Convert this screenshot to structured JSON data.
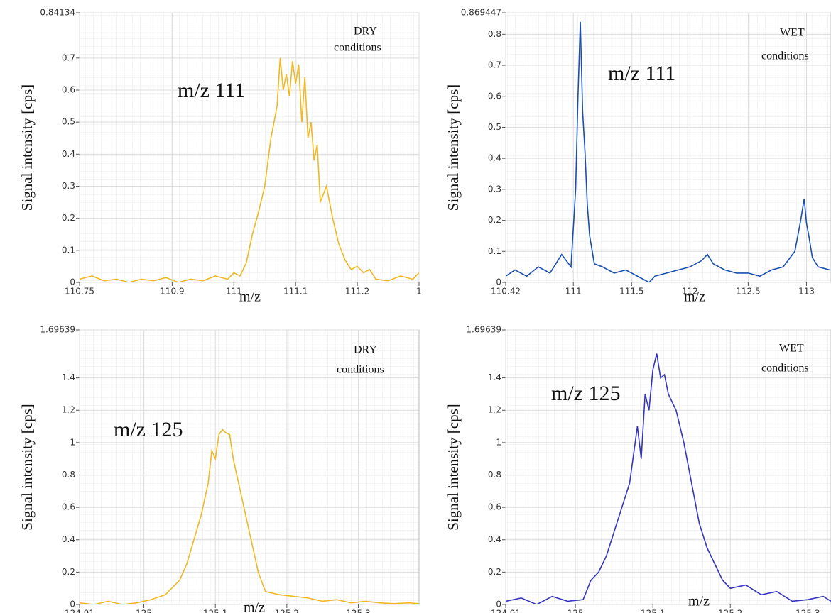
{
  "chart_data": [
    {
      "type": "line",
      "color": "#f0b823",
      "grid": true,
      "x_label": "m/z",
      "y_label": "Signal intensity [cps]",
      "annotations": [
        "DRY",
        "conditions",
        "m/z 111"
      ],
      "xlim": [
        110.75,
        111.3
      ],
      "ylim": [
        0,
        0.84134
      ],
      "xticks": [
        110.75,
        110.9,
        111,
        111.1,
        111.2,
        {
          "value": 111.3,
          "label": "1"
        }
      ],
      "yticks": [
        0,
        0.1,
        0.2,
        0.3,
        0.4,
        0.5,
        0.6,
        0.7,
        0.84134
      ],
      "x": [
        110.75,
        110.77,
        110.79,
        110.81,
        110.83,
        110.85,
        110.87,
        110.89,
        110.91,
        110.93,
        110.95,
        110.97,
        110.99,
        111.0,
        111.01,
        111.02,
        111.03,
        111.04,
        111.05,
        111.06,
        111.07,
        111.075,
        111.08,
        111.085,
        111.09,
        111.095,
        111.1,
        111.105,
        111.11,
        111.115,
        111.12,
        111.125,
        111.13,
        111.135,
        111.14,
        111.15,
        111.16,
        111.17,
        111.18,
        111.19,
        111.2,
        111.21,
        111.22,
        111.23,
        111.25,
        111.27,
        111.29,
        111.3
      ],
      "values": [
        0.01,
        0.02,
        0.005,
        0.01,
        0,
        0.01,
        0.005,
        0.015,
        0,
        0.01,
        0.005,
        0.02,
        0.01,
        0.03,
        0.02,
        0.06,
        0.15,
        0.22,
        0.3,
        0.45,
        0.55,
        0.7,
        0.6,
        0.65,
        0.58,
        0.69,
        0.62,
        0.68,
        0.5,
        0.64,
        0.45,
        0.5,
        0.38,
        0.43,
        0.25,
        0.3,
        0.2,
        0.12,
        0.07,
        0.04,
        0.05,
        0.03,
        0.04,
        0.01,
        0.005,
        0.02,
        0.01,
        0.03
      ]
    },
    {
      "type": "line",
      "color": "#1a4fb0",
      "grid": true,
      "x_label": "m/z",
      "y_label": "Signal intensity [cps]",
      "annotations": [
        "WET",
        "conditions",
        "m/z 111"
      ],
      "xlim": [
        110.42,
        113.21
      ],
      "ylim": [
        0,
        0.869447
      ],
      "xticks": [
        110.42,
        111,
        111.5,
        112,
        112.5,
        113
      ],
      "yticks": [
        0,
        0.1,
        0.2,
        0.3,
        0.4,
        0.5,
        0.6,
        0.7,
        0.8,
        0.869447
      ],
      "x": [
        110.42,
        110.5,
        110.6,
        110.7,
        110.8,
        110.9,
        110.98,
        111.02,
        111.04,
        111.06,
        111.08,
        111.1,
        111.12,
        111.14,
        111.18,
        111.25,
        111.35,
        111.45,
        111.55,
        111.65,
        111.7,
        111.8,
        111.9,
        112.0,
        112.1,
        112.15,
        112.2,
        112.3,
        112.4,
        112.5,
        112.6,
        112.7,
        112.8,
        112.9,
        112.95,
        112.98,
        113.0,
        113.02,
        113.05,
        113.1,
        113.2
      ],
      "values": [
        0.02,
        0.04,
        0.02,
        0.05,
        0.03,
        0.09,
        0.05,
        0.3,
        0.6,
        0.84,
        0.55,
        0.42,
        0.25,
        0.15,
        0.06,
        0.05,
        0.03,
        0.04,
        0.02,
        0,
        0.02,
        0.03,
        0.04,
        0.05,
        0.07,
        0.09,
        0.06,
        0.04,
        0.03,
        0.03,
        0.02,
        0.04,
        0.05,
        0.1,
        0.2,
        0.27,
        0.19,
        0.15,
        0.08,
        0.05,
        0.04
      ]
    },
    {
      "type": "line",
      "color": "#f0b823",
      "grid": true,
      "x_label": "m/z",
      "y_label": "Signal intensity [cps]",
      "annotations": [
        "DRY",
        "conditions",
        "m/z 125"
      ],
      "xlim": [
        124.91,
        125.385
      ],
      "ylim": [
        0,
        1.69639
      ],
      "xticks": [
        124.91,
        125,
        125.1,
        125.2,
        125.3
      ],
      "yticks": [
        0,
        0.2,
        0.4,
        0.6,
        0.8,
        1,
        1.2,
        1.4,
        1.69639
      ],
      "x": [
        124.91,
        124.93,
        124.95,
        124.97,
        124.99,
        125.01,
        125.03,
        125.05,
        125.06,
        125.07,
        125.08,
        125.09,
        125.095,
        125.1,
        125.105,
        125.11,
        125.115,
        125.12,
        125.125,
        125.13,
        125.14,
        125.15,
        125.16,
        125.17,
        125.19,
        125.21,
        125.23,
        125.25,
        125.27,
        125.29,
        125.31,
        125.33,
        125.35,
        125.37,
        125.385
      ],
      "values": [
        0.01,
        0,
        0.02,
        0,
        0.01,
        0.03,
        0.06,
        0.15,
        0.25,
        0.4,
        0.55,
        0.75,
        0.95,
        0.9,
        1.05,
        1.08,
        1.06,
        1.05,
        0.9,
        0.8,
        0.6,
        0.4,
        0.2,
        0.08,
        0.06,
        0.05,
        0.04,
        0.02,
        0.03,
        0.01,
        0.02,
        0.01,
        0.005,
        0.01,
        0.005
      ]
    },
    {
      "type": "line",
      "color": "#3535c0",
      "grid": true,
      "x_label": "m/z",
      "y_label": "Signal intensity [cps]",
      "annotations": [
        "WET",
        "conditions",
        "m/z 125"
      ],
      "xlim": [
        124.91,
        125.33
      ],
      "ylim": [
        0,
        1.69639
      ],
      "xticks": [
        124.91,
        125,
        125.1,
        125.2,
        125.3
      ],
      "yticks": [
        0,
        0.2,
        0.4,
        0.6,
        0.8,
        1,
        1.2,
        1.4,
        1.69639
      ],
      "x": [
        124.91,
        124.93,
        124.95,
        124.97,
        124.99,
        125.01,
        125.02,
        125.03,
        125.04,
        125.05,
        125.06,
        125.07,
        125.08,
        125.085,
        125.09,
        125.095,
        125.1,
        125.105,
        125.11,
        125.115,
        125.12,
        125.13,
        125.14,
        125.15,
        125.16,
        125.17,
        125.18,
        125.19,
        125.2,
        125.22,
        125.24,
        125.26,
        125.28,
        125.3,
        125.32,
        125.33
      ],
      "values": [
        0.02,
        0.04,
        0,
        0.05,
        0.02,
        0.03,
        0.15,
        0.2,
        0.3,
        0.45,
        0.6,
        0.75,
        1.1,
        0.9,
        1.3,
        1.2,
        1.45,
        1.55,
        1.4,
        1.42,
        1.3,
        1.2,
        1.0,
        0.75,
        0.5,
        0.35,
        0.25,
        0.15,
        0.1,
        0.12,
        0.06,
        0.08,
        0.02,
        0.03,
        0.05,
        0.02
      ]
    }
  ]
}
